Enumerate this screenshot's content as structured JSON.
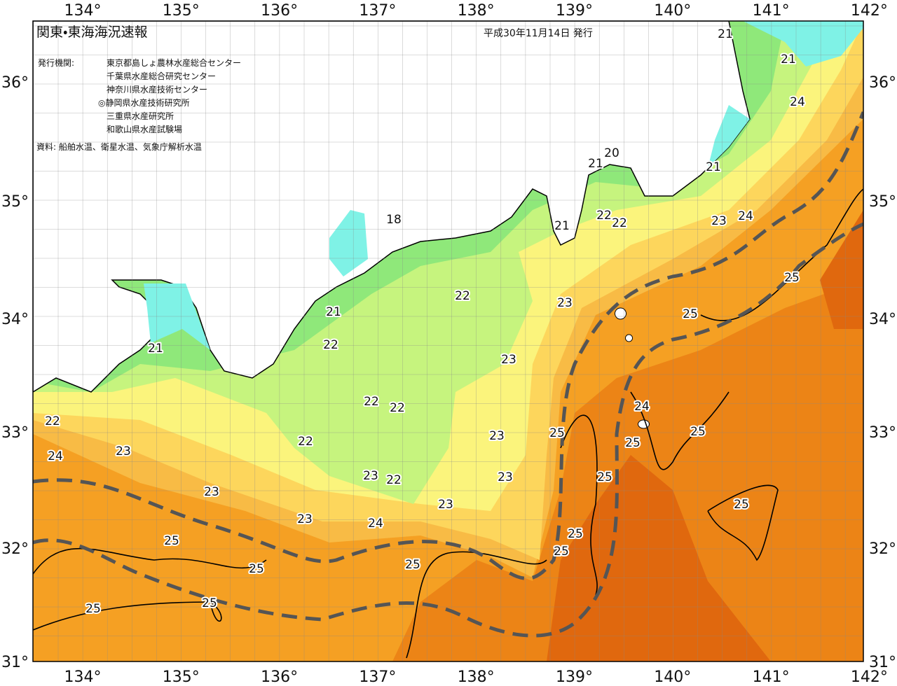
{
  "header": {
    "title": "関東・東海海況速報",
    "date": "平成30年11月14日 発行",
    "issuer_heading": "発行機関:",
    "issuers": [
      "東京都島しょ農林水産総合センター",
      "千葉県水産総合研究センター",
      "神奈川県水産技術センター",
      "◎静岡県水産技術研究所",
      "三重県水産研究所",
      "和歌山県水産試験場"
    ],
    "source": "資料: 船舶水温、衛星水温、気象庁解析水温"
  },
  "longitude_labels": [
    "134°",
    "135°",
    "136°",
    "137°",
    "138°",
    "139°",
    "140°",
    "141°",
    "142°"
  ],
  "latitude_labels": [
    "36°",
    "35°",
    "34°",
    "33°",
    "32°",
    "31°"
  ],
  "contour_labels": [
    "21",
    "21",
    "24",
    "20",
    "21",
    "21",
    "22",
    "22",
    "21",
    "23",
    "24",
    "18",
    "22",
    "23",
    "21",
    "25",
    "25",
    "22",
    "21",
    "23",
    "22",
    "22",
    "24",
    "22",
    "25",
    "23",
    "22",
    "25",
    "25",
    "23",
    "24",
    "25",
    "23",
    "22",
    "23",
    "23",
    "23",
    "25",
    "23",
    "24",
    "25",
    "25",
    "25",
    "25",
    "25",
    "25",
    "25"
  ]
}
